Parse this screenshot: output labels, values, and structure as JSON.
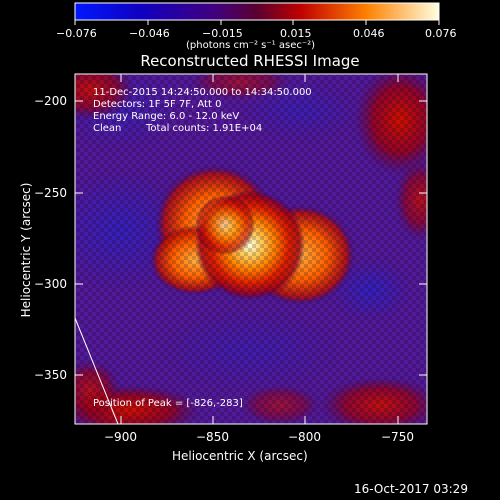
{
  "colorbar": {
    "tick_labels": [
      "−0.076",
      "−0.046",
      "−0.015",
      "0.015",
      "0.046",
      "0.076"
    ],
    "unit_label": "(photons cm⁻² s⁻¹ asec⁻²)",
    "range": [
      -0.076,
      0.076
    ]
  },
  "title": "Reconstructed RHESSI Image",
  "info": {
    "time_range": "11-Dec-2015 14:24:50.000 to 14:34:50.000",
    "detectors": "Detectors: 1F 5F 7F, Att 0",
    "energy": "Energy Range: 6.0 - 12.0 keV",
    "algorithm": "Clean",
    "counts": "Total counts: 1.91E+04",
    "peak": "Position of Peak = [-826,-283]"
  },
  "axes": {
    "xlabel": "Heliocentric X (arcsec)",
    "ylabel": "Heliocentric Y (arcsec)",
    "x_ticks": [
      "−900",
      "−850",
      "−800",
      "−750"
    ],
    "y_ticks": [
      "−200",
      "−250",
      "−300",
      "−350"
    ],
    "x_range": [
      -920,
      -730
    ],
    "y_range": [
      -378,
      -188
    ]
  },
  "footer": "16-Oct-2017 03:29",
  "colors": {
    "background": "#000000",
    "map_low": "#1a0060",
    "map_mid": "#ff4000",
    "map_high": "#ffffd0"
  }
}
